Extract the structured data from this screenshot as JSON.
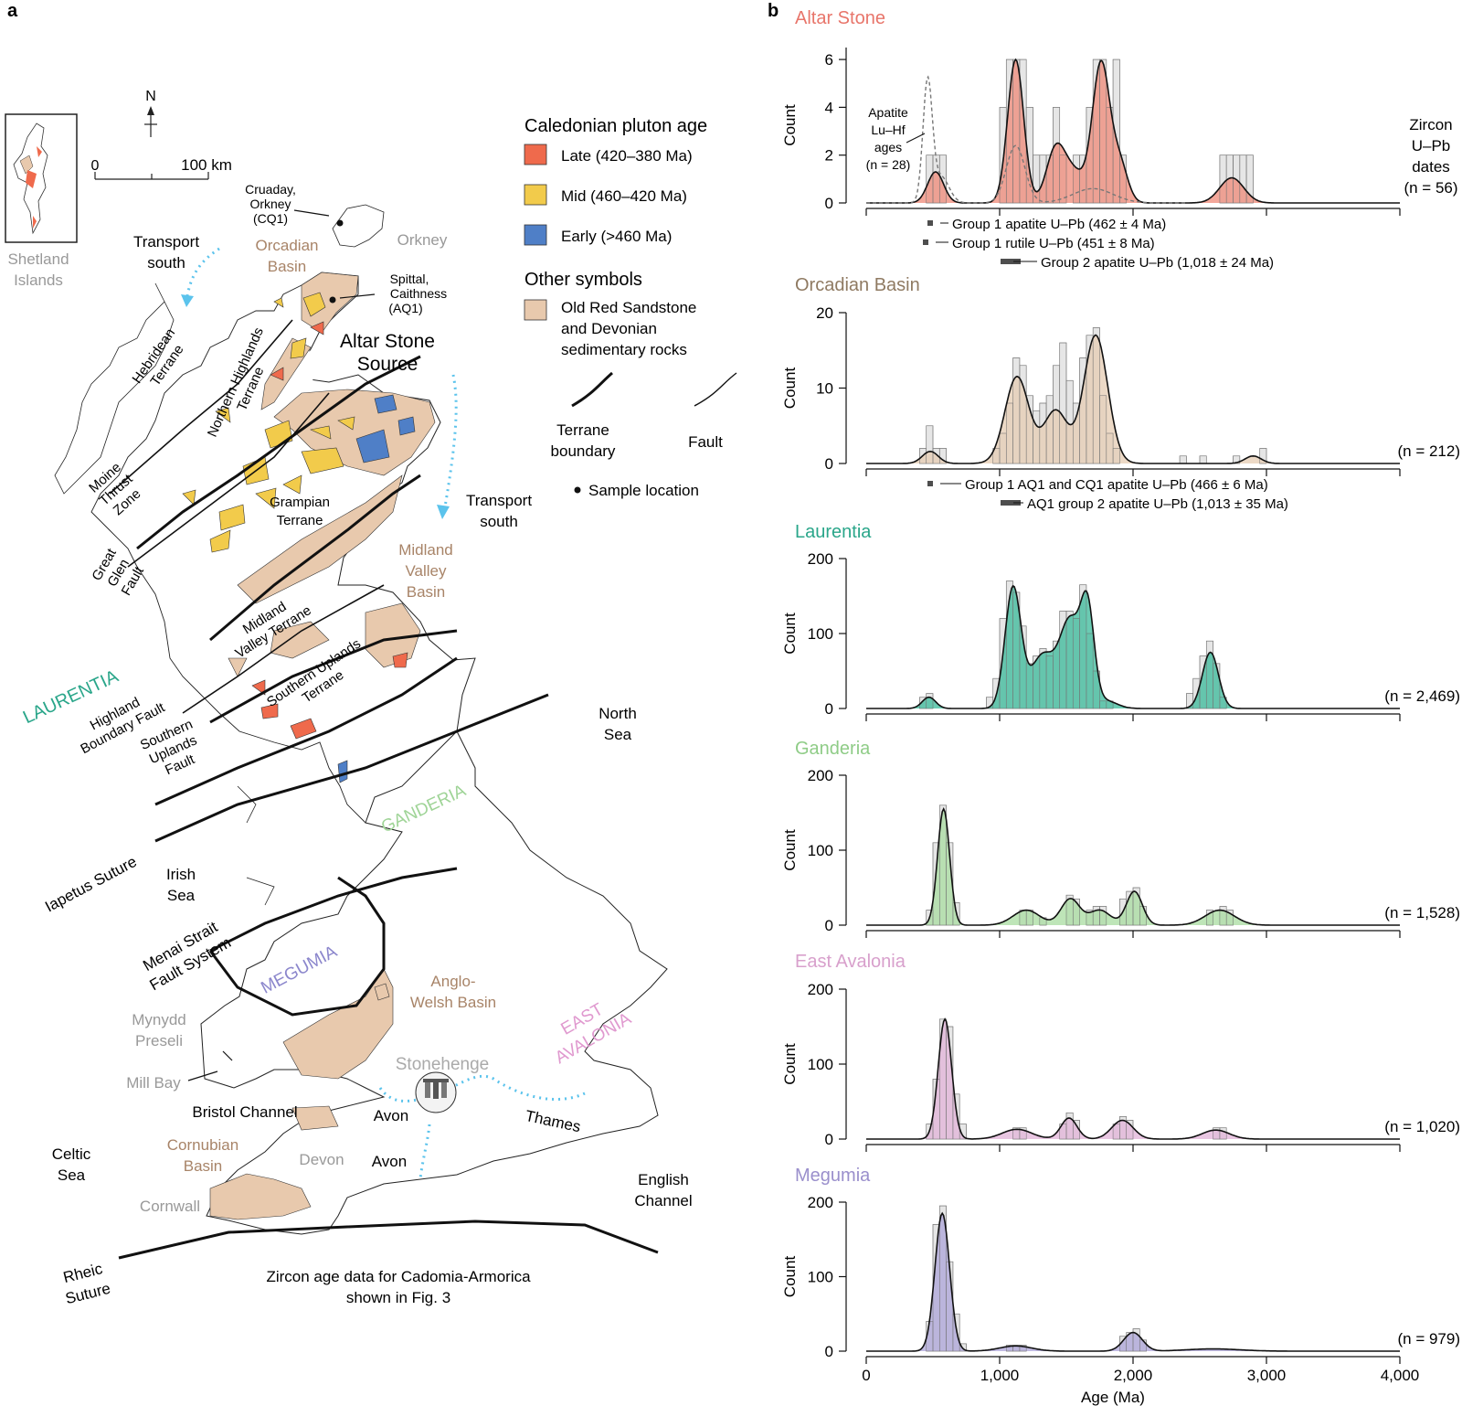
{
  "panel_a": {
    "label": "a",
    "north": "N",
    "scale_zero": "0",
    "scale_label": "100 km",
    "inset_label": [
      "Shetland",
      "Islands"
    ],
    "legend": {
      "title": "Caledonian pluton age",
      "items": [
        {
          "label": "Late (420–380 Ma)",
          "color": "#ef6a4c"
        },
        {
          "label": "Mid (460–420 Ma)",
          "color": "#f2cb4b"
        },
        {
          "label": "Early (>460 Ma)",
          "color": "#4f7fc7"
        }
      ],
      "other_title": "Other symbols",
      "sandstone": [
        "Old Red Sandstone",
        "and Devonian",
        "sedimentary rocks"
      ],
      "sandstone_color": "#e8c9ad",
      "terrane_boundary": [
        "Terrane",
        "boundary"
      ],
      "fault": "Fault",
      "sample_location": "Sample location"
    },
    "labels": {
      "cruaday": [
        "Cruaday,",
        "Orkney",
        "(CQ1)"
      ],
      "orkney": "Orkney",
      "spittal": [
        "Spittal,",
        "Caithness",
        "(AQ1)"
      ],
      "altar_source": [
        "Altar Stone",
        "Source"
      ],
      "orcadian_basin": [
        "Orcadian",
        "Basin"
      ],
      "transport_south_1": [
        "Transport",
        "south"
      ],
      "transport_south_2": [
        "Transport",
        "south"
      ],
      "hebridean": [
        "Hebridean",
        "Terrane"
      ],
      "northern_highlands": [
        "Northern Highlands",
        "Terrane"
      ],
      "moine": [
        "Moine",
        "Thrust",
        "Zone"
      ],
      "grampian": [
        "Grampian",
        "Terrane"
      ],
      "great_glen": [
        "Great",
        "Glen",
        "Fault"
      ],
      "midland_valley_basin": [
        "Midland",
        "Valley",
        "Basin"
      ],
      "midland_valley_terrane": [
        "Midland",
        "Valley Terrane"
      ],
      "laurentia": "LAURENTIA",
      "highland_boundary": [
        "Highland",
        "Boundary Fault"
      ],
      "southern_uplands_terrane": [
        "Southern Uplands",
        "Terrane"
      ],
      "southern_uplands_fault": [
        "Southern",
        "Uplands",
        "Fault"
      ],
      "north_sea": [
        "North",
        "Sea"
      ],
      "ganderia": "GANDERIA",
      "iapetus": "Iapetus Suture",
      "irish_sea": [
        "Irish",
        "Sea"
      ],
      "menai": [
        "Menai Strait",
        "Fault System"
      ],
      "megumia": "MEGUMIA",
      "anglo_welsh": [
        "Anglo-",
        "Welsh Basin"
      ],
      "east_avalonia": [
        "EAST",
        "AVALONIA"
      ],
      "mynydd": [
        "Mynydd",
        "Preseli"
      ],
      "mill_bay": "Mill Bay",
      "stonehenge": "Stonehenge",
      "bristol_channel": "Bristol Channel",
      "avon_1": "Avon",
      "avon_2": "Avon",
      "thames": "Thames",
      "celtic_sea": [
        "Celtic",
        "Sea"
      ],
      "cornubian": [
        "Cornubian",
        "Basin"
      ],
      "devon": "Devon",
      "cornwall": "Cornwall",
      "english_channel": [
        "English",
        "Channel"
      ],
      "rheic": [
        "Rheic",
        "Suture"
      ],
      "cadomia": [
        "Zircon age data for Cadomia-Armorica",
        "shown in Fig. 3"
      ]
    }
  },
  "panel_b": {
    "label": "b",
    "xlabel": "Age (Ma)",
    "xticks": [
      "0",
      "1,000",
      "2,000",
      "3,000",
      "4,000"
    ]
  },
  "chart_data": [
    {
      "type": "histogram",
      "title": "Altar Stone",
      "title_color": "#e8756a",
      "ylabel": "Count",
      "ylim": [
        0,
        6.5
      ],
      "xlim": [
        0,
        4000
      ],
      "yticks": [
        0,
        2,
        4,
        6
      ],
      "yticklabels": [
        "0",
        "2",
        "4",
        "6"
      ],
      "n_label": "n = 56",
      "fill": "#ef8a78",
      "right_label": [
        "Zircon",
        "U–Pb",
        "dates",
        "(n = 56)"
      ],
      "apatite_label": [
        "Apatite",
        "Lu–Hf",
        "ages",
        "(n = 28)"
      ],
      "annotations": [
        "Group 1 apatite U–Pb (462 ± 4 Ma)",
        "Group 1 rutile U–Pb (451 ± 8 Ma)",
        "Group 2 apatite U–Pb (1,018 ± 24 Ma)"
      ],
      "bins": [
        [
          450,
          500,
          2
        ],
        [
          500,
          550,
          2
        ],
        [
          550,
          600,
          2
        ],
        [
          1000,
          1050,
          4
        ],
        [
          1050,
          1100,
          6
        ],
        [
          1100,
          1150,
          6
        ],
        [
          1150,
          1200,
          6
        ],
        [
          1200,
          1250,
          4
        ],
        [
          1250,
          1300,
          2
        ],
        [
          1300,
          1350,
          2
        ],
        [
          1350,
          1400,
          2
        ],
        [
          1400,
          1450,
          4
        ],
        [
          1450,
          1500,
          2
        ],
        [
          1550,
          1600,
          2
        ],
        [
          1600,
          1650,
          2
        ],
        [
          1650,
          1700,
          4
        ],
        [
          1700,
          1750,
          6
        ],
        [
          1750,
          1800,
          6
        ],
        [
          1800,
          1850,
          4
        ],
        [
          1850,
          1900,
          6
        ],
        [
          1900,
          1950,
          2
        ],
        [
          2650,
          2700,
          2
        ],
        [
          2700,
          2750,
          2
        ],
        [
          2750,
          2800,
          2
        ],
        [
          2800,
          2850,
          2
        ],
        [
          2850,
          2900,
          2
        ]
      ],
      "kde_peaks": [
        [
          520,
          1.3,
          60
        ],
        [
          1120,
          6.0,
          60
        ],
        [
          1420,
          2.2,
          70
        ],
        [
          1760,
          5.8,
          65
        ],
        [
          1900,
          1.6,
          60
        ],
        [
          1560,
          1.2,
          80
        ],
        [
          2740,
          1.05,
          90
        ]
      ],
      "apatite_kde": [
        [
          460,
          5.0,
          35
        ],
        [
          560,
          1.1,
          60
        ],
        [
          1120,
          2.4,
          70
        ],
        [
          1700,
          0.6,
          150
        ]
      ]
    },
    {
      "type": "histogram",
      "title": "Orcadian Basin",
      "title_color": "#8f7a62",
      "ylabel": "Count",
      "ylim": [
        0,
        20
      ],
      "xlim": [
        0,
        4000
      ],
      "yticks": [
        0,
        10,
        20
      ],
      "yticklabels": [
        "0",
        "10",
        "20"
      ],
      "n_label": "n = 212",
      "fill": "#e6ccb3",
      "annotations": [
        "Group 1 AQ1 and CQ1 apatite U–Pb (466 ± 6 Ma)",
        "AQ1 group 2 apatite U–Pb (1,013 ± 35 Ma)"
      ],
      "bins": [
        [
          400,
          450,
          2
        ],
        [
          450,
          500,
          5
        ],
        [
          500,
          550,
          2
        ],
        [
          550,
          600,
          2
        ],
        [
          950,
          1000,
          2
        ],
        [
          1000,
          1050,
          4
        ],
        [
          1050,
          1100,
          8
        ],
        [
          1100,
          1150,
          14
        ],
        [
          1150,
          1200,
          13
        ],
        [
          1200,
          1250,
          9
        ],
        [
          1250,
          1300,
          7
        ],
        [
          1300,
          1350,
          8
        ],
        [
          1350,
          1400,
          9
        ],
        [
          1400,
          1450,
          13
        ],
        [
          1450,
          1500,
          16
        ],
        [
          1500,
          1550,
          11
        ],
        [
          1550,
          1600,
          8
        ],
        [
          1600,
          1650,
          14
        ],
        [
          1650,
          1700,
          17
        ],
        [
          1700,
          1750,
          18
        ],
        [
          1750,
          1800,
          9
        ],
        [
          1800,
          1850,
          4
        ],
        [
          1850,
          1900,
          2
        ],
        [
          2350,
          2400,
          1
        ],
        [
          2500,
          2550,
          1
        ],
        [
          2750,
          2800,
          1
        ],
        [
          2950,
          3000,
          2
        ]
      ],
      "kde_peaks": [
        [
          480,
          1.6,
          60
        ],
        [
          1130,
          11.5,
          90
        ],
        [
          1420,
          7.0,
          90
        ],
        [
          1720,
          17.0,
          90
        ],
        [
          2900,
          1.0,
          60
        ]
      ]
    },
    {
      "type": "histogram",
      "title": "Laurentia",
      "title_color": "#2aa68a",
      "ylabel": "Count",
      "ylim": [
        0,
        200
      ],
      "xlim": [
        0,
        4000
      ],
      "yticks": [
        0,
        100,
        200
      ],
      "yticklabels": [
        "0",
        "100",
        "200"
      ],
      "n_label": "n = 2,469",
      "fill": "#3ab999",
      "bins": [
        [
          400,
          450,
          15
        ],
        [
          450,
          500,
          20
        ],
        [
          900,
          950,
          15
        ],
        [
          950,
          1000,
          40
        ],
        [
          1000,
          1050,
          120
        ],
        [
          1050,
          1100,
          170
        ],
        [
          1100,
          1150,
          155
        ],
        [
          1150,
          1200,
          110
        ],
        [
          1200,
          1250,
          60
        ],
        [
          1250,
          1300,
          70
        ],
        [
          1300,
          1350,
          80
        ],
        [
          1350,
          1400,
          70
        ],
        [
          1400,
          1450,
          90
        ],
        [
          1450,
          1500,
          130
        ],
        [
          1500,
          1550,
          130
        ],
        [
          1550,
          1600,
          120
        ],
        [
          1600,
          1650,
          165
        ],
        [
          1650,
          1700,
          100
        ],
        [
          1700,
          1750,
          50
        ],
        [
          1750,
          1800,
          10
        ],
        [
          1800,
          1850,
          10
        ],
        [
          2400,
          2450,
          20
        ],
        [
          2450,
          2500,
          40
        ],
        [
          2500,
          2550,
          70
        ],
        [
          2550,
          2600,
          90
        ],
        [
          2600,
          2650,
          60
        ],
        [
          2650,
          2700,
          15
        ]
      ],
      "kde_peaks": [
        [
          470,
          15,
          50
        ],
        [
          1100,
          160,
          60
        ],
        [
          1320,
          70,
          90
        ],
        [
          1530,
          115,
          80
        ],
        [
          1660,
          120,
          50
        ],
        [
          2580,
          75,
          60
        ],
        [
          1800,
          10,
          80
        ]
      ]
    },
    {
      "type": "histogram",
      "title": "Ganderia",
      "title_color": "#8fcc87",
      "ylabel": "Count",
      "ylim": [
        0,
        200
      ],
      "xlim": [
        0,
        4000
      ],
      "yticks": [
        0,
        100,
        200
      ],
      "yticklabels": [
        "0",
        "100",
        "200"
      ],
      "n_label": "n = 1,528",
      "fill": "#a8dca0",
      "bins": [
        [
          450,
          500,
          20
        ],
        [
          500,
          550,
          110
        ],
        [
          550,
          600,
          160
        ],
        [
          600,
          650,
          110
        ],
        [
          650,
          700,
          30
        ],
        [
          1150,
          1200,
          20
        ],
        [
          1200,
          1250,
          20
        ],
        [
          1300,
          1350,
          10
        ],
        [
          1500,
          1550,
          40
        ],
        [
          1550,
          1600,
          35
        ],
        [
          1650,
          1700,
          20
        ],
        [
          1700,
          1750,
          25
        ],
        [
          1750,
          1800,
          25
        ],
        [
          1900,
          1950,
          35
        ],
        [
          1950,
          2000,
          45
        ],
        [
          2000,
          2050,
          50
        ],
        [
          2050,
          2100,
          25
        ],
        [
          2550,
          2600,
          20
        ],
        [
          2650,
          2700,
          25
        ],
        [
          2700,
          2750,
          20
        ]
      ],
      "kde_peaks": [
        [
          580,
          155,
          45
        ],
        [
          1200,
          20,
          100
        ],
        [
          1530,
          35,
          70
        ],
        [
          1750,
          20,
          80
        ],
        [
          2010,
          45,
          60
        ],
        [
          2650,
          20,
          110
        ]
      ]
    },
    {
      "type": "histogram",
      "title": "East Avalonia",
      "title_color": "#d8a0cc",
      "ylabel": "Count",
      "ylim": [
        0,
        200
      ],
      "xlim": [
        0,
        4000
      ],
      "yticks": [
        0,
        100,
        200
      ],
      "yticklabels": [
        "0",
        "100",
        "200"
      ],
      "n_label": "n = 1,020",
      "fill": "#e2b3d8",
      "bins": [
        [
          450,
          500,
          20
        ],
        [
          500,
          550,
          80
        ],
        [
          550,
          600,
          160
        ],
        [
          600,
          650,
          150
        ],
        [
          650,
          700,
          60
        ],
        [
          700,
          750,
          20
        ],
        [
          1100,
          1150,
          15
        ],
        [
          1150,
          1200,
          15
        ],
        [
          1450,
          1500,
          20
        ],
        [
          1500,
          1550,
          35
        ],
        [
          1550,
          1600,
          25
        ],
        [
          1850,
          1900,
          20
        ],
        [
          1900,
          1950,
          30
        ],
        [
          1950,
          2000,
          25
        ],
        [
          2600,
          2650,
          15
        ],
        [
          2650,
          2700,
          15
        ]
      ],
      "kde_peaks": [
        [
          590,
          160,
          50
        ],
        [
          1130,
          13,
          110
        ],
        [
          1520,
          28,
          60
        ],
        [
          1920,
          25,
          80
        ],
        [
          2620,
          12,
          100
        ]
      ]
    },
    {
      "type": "histogram",
      "title": "Megumia",
      "title_color": "#9a8fcc",
      "ylabel": "Count",
      "ylim": [
        0,
        200
      ],
      "xlim": [
        0,
        4000
      ],
      "yticks": [
        0,
        100,
        200
      ],
      "yticklabels": [
        "0",
        "100",
        "200"
      ],
      "n_label": "n = 979",
      "fill": "#aca4d8",
      "bins": [
        [
          450,
          500,
          40
        ],
        [
          500,
          550,
          170
        ],
        [
          550,
          600,
          195
        ],
        [
          600,
          650,
          120
        ],
        [
          650,
          700,
          50
        ],
        [
          700,
          750,
          10
        ],
        [
          1050,
          1100,
          8
        ],
        [
          1100,
          1150,
          8
        ],
        [
          1150,
          1200,
          8
        ],
        [
          1900,
          1950,
          20
        ],
        [
          1950,
          2000,
          25
        ],
        [
          2000,
          2050,
          30
        ],
        [
          2050,
          2100,
          15
        ]
      ],
      "kde_peaks": [
        [
          570,
          185,
          55
        ],
        [
          1120,
          7,
          120
        ],
        [
          2000,
          25,
          70
        ],
        [
          2600,
          3,
          200
        ]
      ]
    }
  ]
}
